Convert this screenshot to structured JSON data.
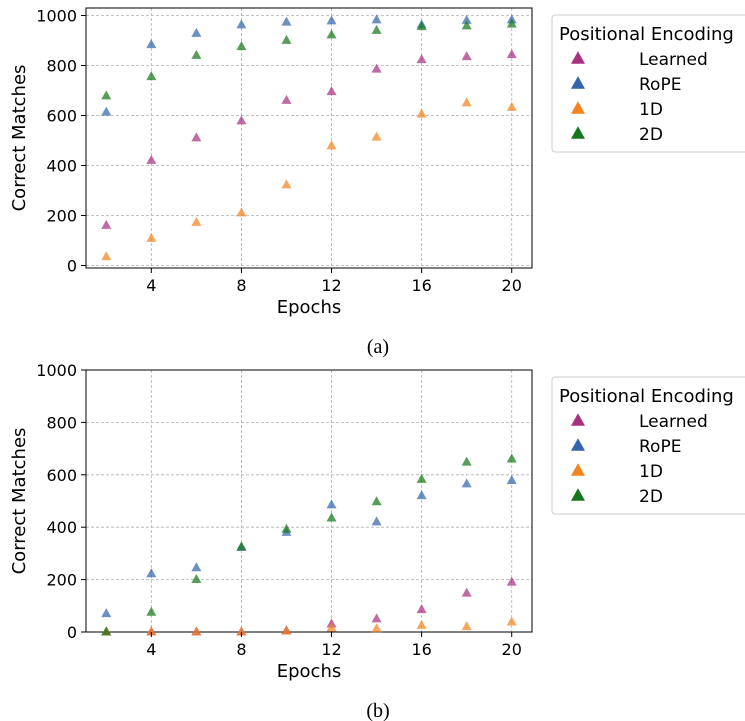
{
  "colors": {
    "Learned": "#a8327f",
    "RoPE": "#3465ac",
    "1D": "#f4841f",
    "2D": "#15791b",
    "grid": "#b0b0b0"
  },
  "chart_data": [
    {
      "type": "scatter",
      "caption": "(a)",
      "xlabel": "Epochs",
      "ylabel": "Correct Matches",
      "xlim": [
        1.1,
        20.9
      ],
      "ylim": [
        -10,
        1030
      ],
      "xticks": [
        4,
        8,
        12,
        16,
        20
      ],
      "yticks": [
        0,
        200,
        400,
        600,
        800,
        1000
      ],
      "grid": true,
      "legend_title": "Positional Encoding",
      "legend_position": "outside-right",
      "x": [
        2,
        4,
        6,
        8,
        10,
        12,
        14,
        16,
        18,
        20
      ],
      "series": [
        {
          "name": "Learned",
          "values": [
            160,
            420,
            510,
            578,
            660,
            695,
            785,
            823,
            835,
            843
          ]
        },
        {
          "name": "RoPE",
          "values": [
            613,
            883,
            928,
            962,
            973,
            978,
            982,
            962,
            980,
            982
          ]
        },
        {
          "name": "1D",
          "values": [
            35,
            108,
            172,
            210,
            322,
            478,
            513,
            605,
            650,
            632
          ]
        },
        {
          "name": "2D",
          "values": [
            678,
            755,
            840,
            875,
            900,
            922,
            940,
            955,
            958,
            965
          ]
        }
      ]
    },
    {
      "type": "scatter",
      "caption": "(b)",
      "xlabel": "Epochs",
      "ylabel": "Correct Matches",
      "xlim": [
        1.1,
        20.9
      ],
      "ylim": [
        0,
        1000
      ],
      "xticks": [
        4,
        8,
        12,
        16,
        20
      ],
      "yticks": [
        0,
        200,
        400,
        600,
        800,
        1000
      ],
      "grid": true,
      "legend_title": "Positional Encoding",
      "legend_position": "outside-right",
      "x": [
        2,
        4,
        6,
        8,
        10,
        12,
        14,
        16,
        18,
        20
      ],
      "series": [
        {
          "name": "Learned",
          "values": [
            0,
            0,
            0,
            0,
            5,
            30,
            50,
            85,
            148,
            190
          ]
        },
        {
          "name": "RoPE",
          "values": [
            70,
            222,
            245,
            322,
            380,
            485,
            420,
            520,
            565,
            578
          ]
        },
        {
          "name": "1D",
          "values": [
            0,
            0,
            0,
            0,
            3,
            15,
            12,
            25,
            20,
            38
          ]
        },
        {
          "name": "2D",
          "values": [
            0,
            75,
            200,
            325,
            392,
            435,
            497,
            582,
            648,
            660
          ]
        }
      ]
    }
  ]
}
